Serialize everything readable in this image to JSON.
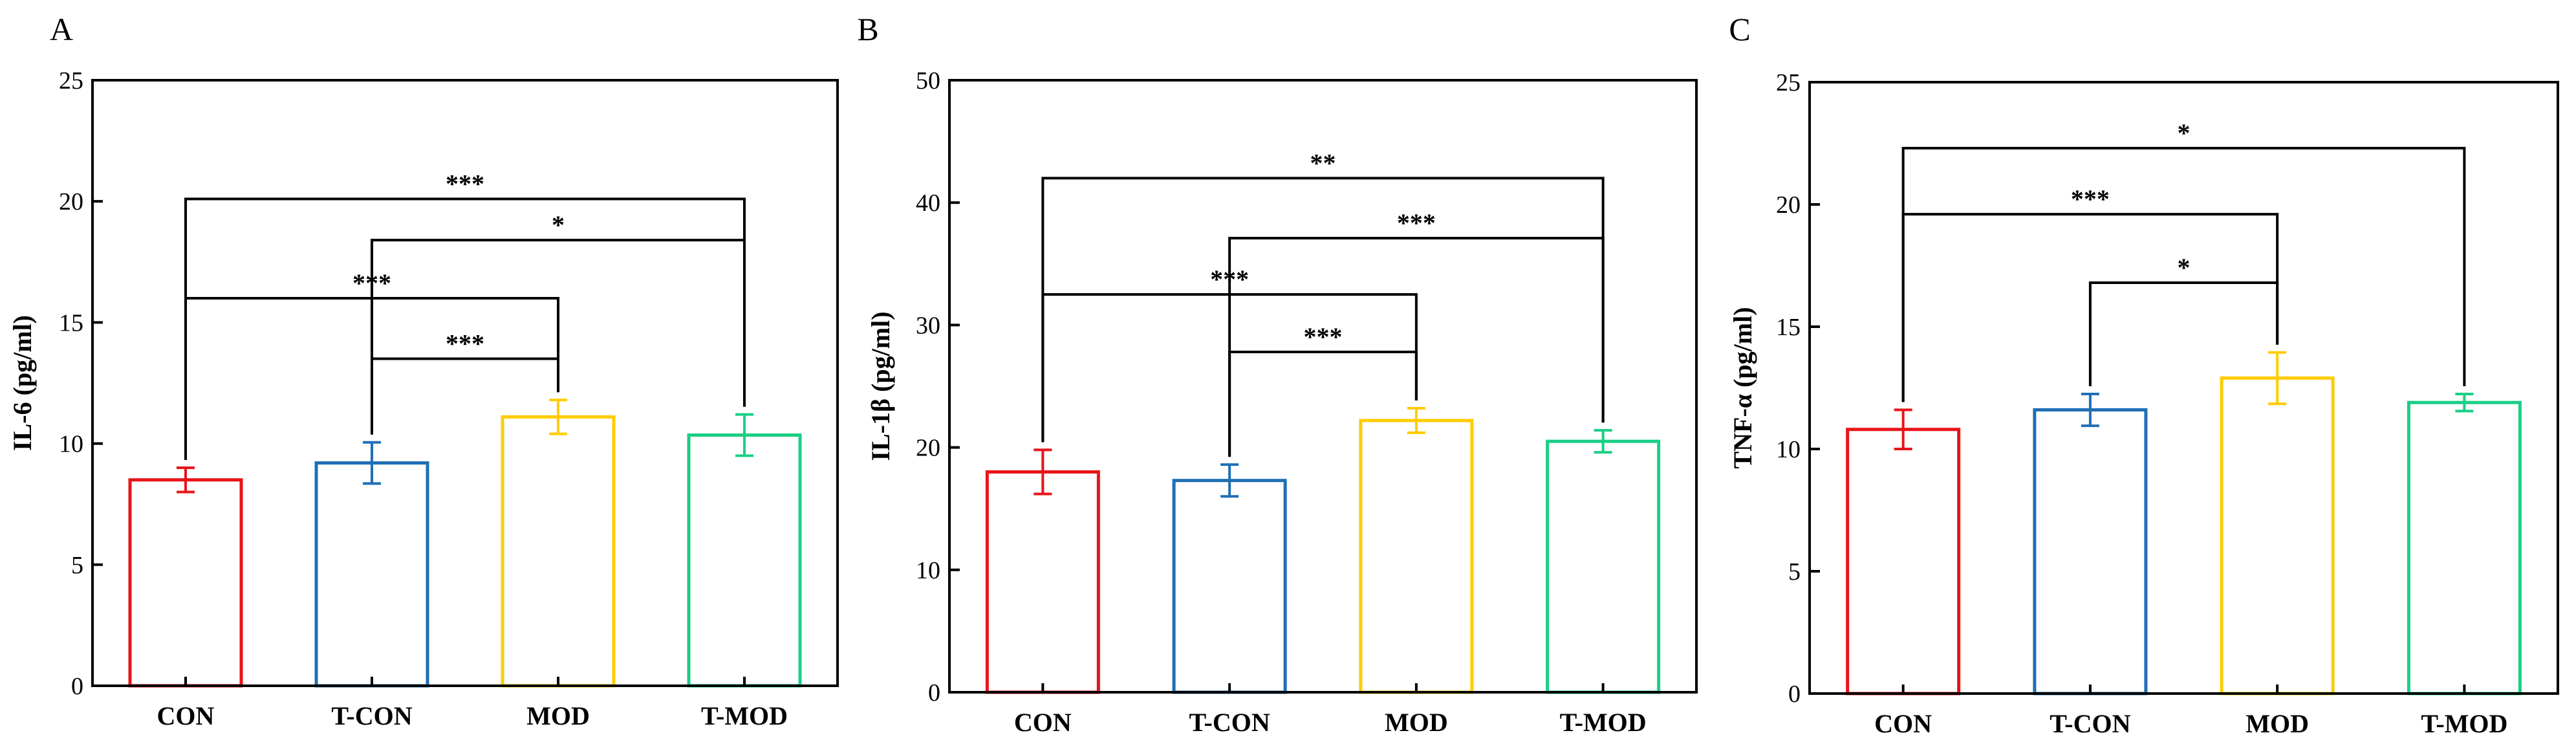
{
  "chart_data": [
    {
      "type": "bar",
      "panel": "A",
      "ylabel": "IL-6 (pg/ml)",
      "xlabel": "",
      "ylim": [
        0,
        25
      ],
      "yticks": [
        0,
        5,
        10,
        15,
        20,
        25
      ],
      "categories": [
        "CON",
        "T-CON",
        "MOD",
        "T-MOD"
      ],
      "values": [
        8.5,
        9.2,
        11.1,
        10.35
      ],
      "errors": [
        0.5,
        0.85,
        0.7,
        0.85
      ],
      "colors": [
        "#e8141a",
        "#1f6fb5",
        "#ffcc00",
        "#19cf85"
      ],
      "significance": [
        {
          "from": 0,
          "to": 3,
          "label": "***",
          "level": 20.1
        },
        {
          "from": 1,
          "to": 3,
          "label": "*",
          "level": 18.4
        },
        {
          "from": 0,
          "to": 2,
          "label": "***",
          "level": 16.0
        },
        {
          "from": 1,
          "to": 2,
          "label": "***",
          "level": 13.5
        }
      ]
    },
    {
      "type": "bar",
      "panel": "B",
      "ylabel": "IL-1β (pg/ml)",
      "xlabel": "",
      "ylim": [
        0,
        50
      ],
      "yticks": [
        0,
        10,
        20,
        30,
        40,
        50
      ],
      "categories": [
        "CON",
        "T-CON",
        "MOD",
        "T-MOD"
      ],
      "values": [
        18.0,
        17.3,
        22.2,
        20.5
      ],
      "errors": [
        1.8,
        1.3,
        1.0,
        0.9
      ],
      "colors": [
        "#e8141a",
        "#1f6fb5",
        "#ffcc00",
        "#19cf85"
      ],
      "significance": [
        {
          "from": 0,
          "to": 3,
          "label": "**",
          "level": 42.0
        },
        {
          "from": 1,
          "to": 3,
          "label": "***",
          "level": 37.1
        },
        {
          "from": 0,
          "to": 2,
          "label": "***",
          "level": 32.5
        },
        {
          "from": 1,
          "to": 2,
          "label": "***",
          "level": 27.8
        }
      ]
    },
    {
      "type": "bar",
      "panel": "C",
      "ylabel": "TNF-α (pg/ml)",
      "xlabel": "",
      "ylim": [
        0,
        25
      ],
      "yticks": [
        0,
        5,
        10,
        15,
        20,
        25
      ],
      "categories": [
        "CON",
        "T-CON",
        "MOD",
        "T-MOD"
      ],
      "values": [
        10.8,
        11.6,
        12.9,
        11.9
      ],
      "errors": [
        0.8,
        0.65,
        1.05,
        0.35
      ],
      "colors": [
        "#e8141a",
        "#1f6fb5",
        "#ffcc00",
        "#19cf85"
      ],
      "significance": [
        {
          "from": 0,
          "to": 3,
          "label": "*",
          "level": 22.3
        },
        {
          "from": 0,
          "to": 2,
          "label": "***",
          "level": 19.6
        },
        {
          "from": 1,
          "to": 2,
          "label": "*",
          "level": 16.8
        }
      ]
    }
  ]
}
